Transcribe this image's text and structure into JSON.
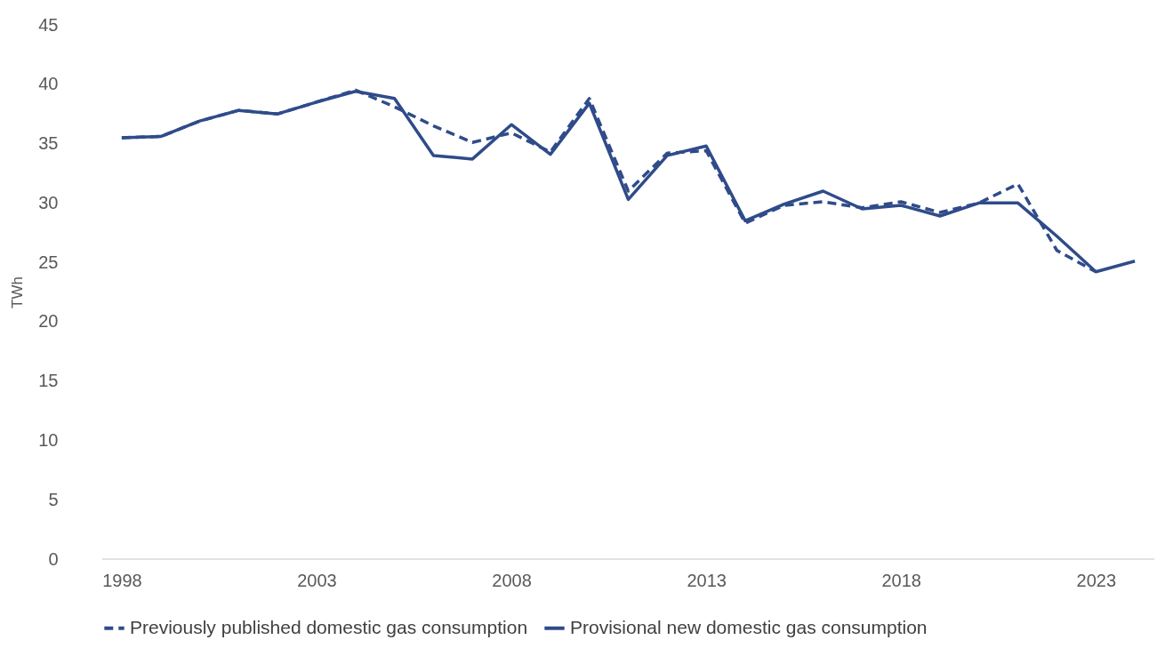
{
  "chart_data": {
    "type": "line",
    "ylabel": "TWh",
    "x": [
      1998,
      1999,
      2000,
      2001,
      2002,
      2003,
      2004,
      2005,
      2006,
      2007,
      2008,
      2009,
      2010,
      2011,
      2012,
      2013,
      2014,
      2015,
      2016,
      2017,
      2018,
      2019,
      2020,
      2021,
      2022,
      2023,
      2024
    ],
    "xlim": [
      1997.5,
      2024.5
    ],
    "xticks": [
      1998,
      2003,
      2008,
      2013,
      2018,
      2023
    ],
    "ylim": [
      0,
      45
    ],
    "yticks": [
      0,
      5,
      10,
      15,
      20,
      25,
      30,
      35,
      40,
      45
    ],
    "grid": false,
    "legend": "bottom",
    "marker": "none",
    "series": [
      {
        "name": "Previously published domestic gas consumption",
        "color": "#2f4b8a",
        "line_style": "dashed",
        "values": [
          35.5,
          35.6,
          36.9,
          37.8,
          37.5,
          38.5,
          39.5,
          38.1,
          36.5,
          35.1,
          35.9,
          34.3,
          38.8,
          31.0,
          34.2,
          34.4,
          28.3,
          29.8,
          30.1,
          29.6,
          30.1,
          29.2,
          30.0,
          31.6,
          26.0,
          24.2,
          null
        ]
      },
      {
        "name": "Provisional new domestic gas consumption",
        "color": "#2f4b8a",
        "line_style": "solid",
        "values": [
          35.5,
          35.6,
          36.9,
          37.8,
          37.5,
          38.5,
          39.4,
          38.8,
          34.0,
          33.7,
          36.6,
          34.1,
          38.4,
          30.3,
          34.0,
          34.8,
          28.5,
          29.9,
          31.0,
          29.5,
          29.8,
          28.9,
          30.0,
          30.0,
          27.2,
          24.2,
          25.1
        ]
      }
    ]
  }
}
